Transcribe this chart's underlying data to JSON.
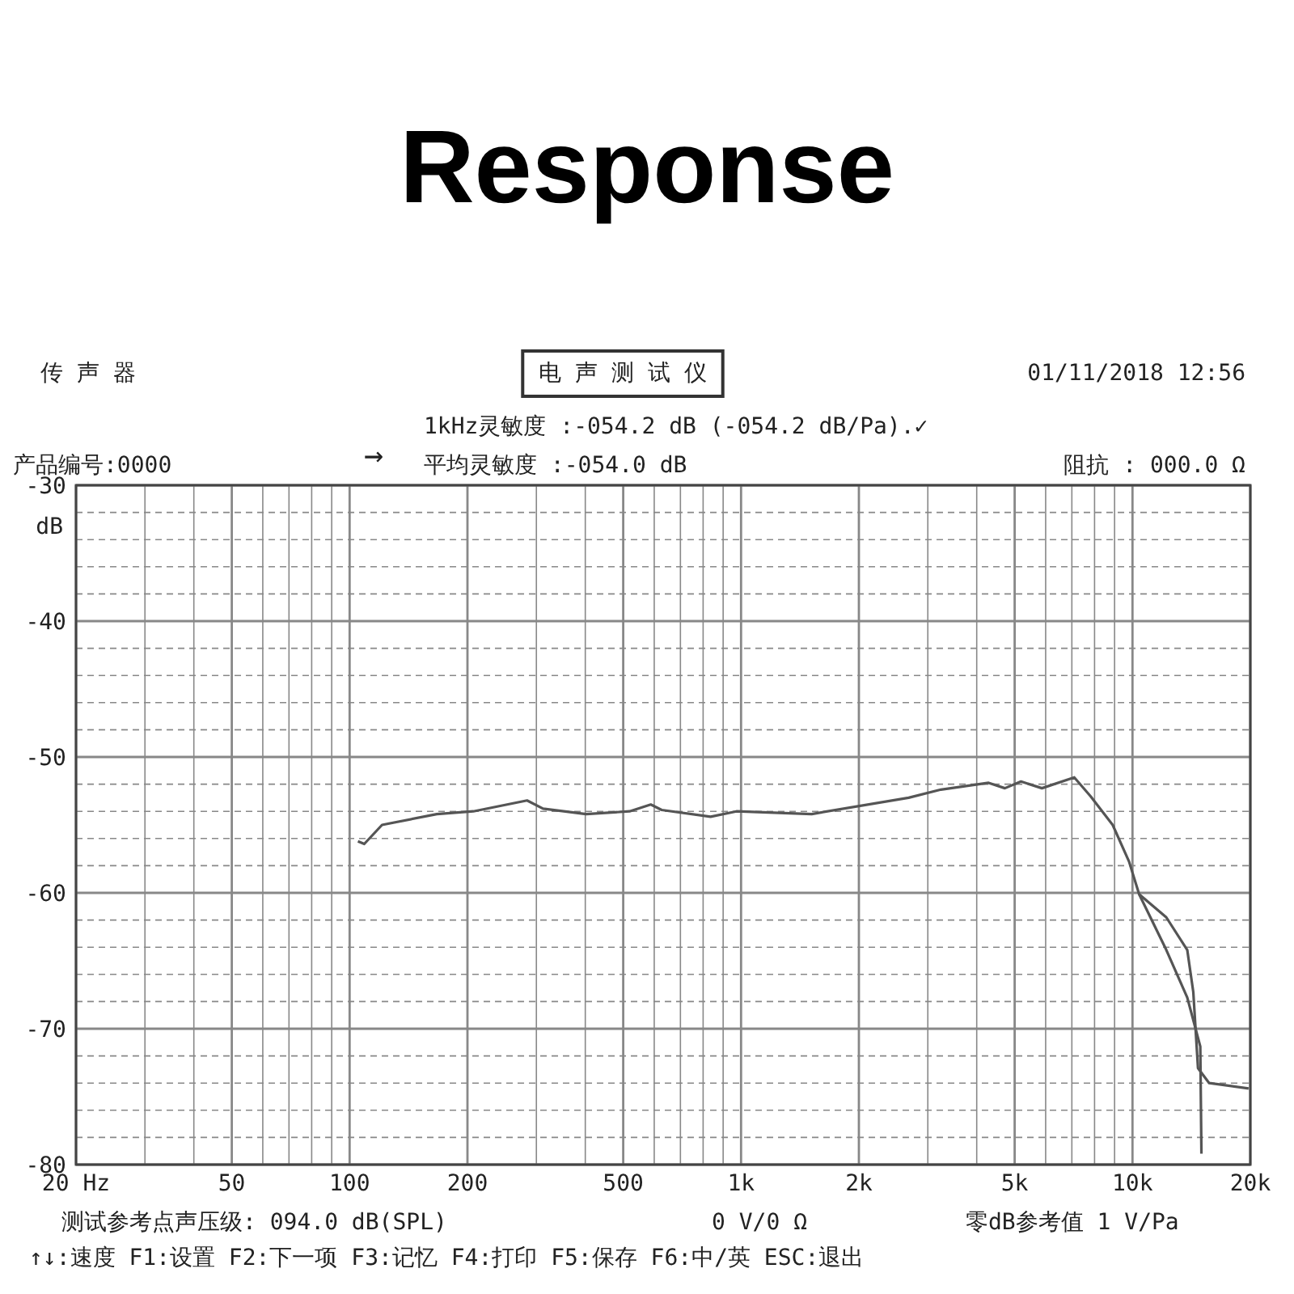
{
  "chart_data": {
    "type": "line",
    "title": "Response",
    "ylabel": "dB",
    "log": "x",
    "xlim": [
      20,
      20000
    ],
    "xticks": [
      {
        "value": 20,
        "label": "20 Hz"
      },
      50,
      100,
      200,
      500,
      {
        "value": 1000,
        "label": "1k"
      },
      {
        "value": 2000,
        "label": "2k"
      },
      {
        "value": 5000,
        "label": "5k"
      },
      {
        "value": 10000,
        "label": "10k"
      },
      {
        "value": 20000,
        "label": "20k"
      }
    ],
    "ylim": [
      -80,
      -30
    ],
    "yticks": [
      -30,
      -40,
      -50,
      -60,
      -70,
      -80
    ],
    "grid": true,
    "line_style": "solid",
    "marker": "none",
    "series": [
      {
        "color": "#555555",
        "x": [
          105,
          109,
          121,
          167,
          207,
          284,
          312,
          402,
          519,
          588,
          627,
          836,
          973,
          1515,
          2680,
          3240,
          4290,
          4720,
          5190,
          5870,
          7100,
          7820,
          8900,
          9800,
          10400,
          12200,
          13800,
          14300,
          14700,
          15700,
          19800
        ],
        "values": [
          -56.2,
          -56.4,
          -55.0,
          -54.2,
          -54.0,
          -53.2,
          -53.8,
          -54.2,
          -54.0,
          -53.5,
          -53.9,
          -54.4,
          -54.0,
          -54.2,
          -53.0,
          -52.4,
          -51.9,
          -52.3,
          -51.8,
          -52.3,
          -51.5,
          -52.9,
          -55.0,
          -57.7,
          -60.1,
          -61.8,
          -64.2,
          -67.3,
          -72.9,
          -74.0,
          -74.4
        ]
      },
      {
        "color": "#555555",
        "x": [
          10400,
          12200,
          13800,
          14900,
          15000
        ],
        "values": [
          -60.1,
          -64.2,
          -67.7,
          -71.3,
          -79.2
        ]
      }
    ],
    "annotations": [
      "传 声 器",
      "电 声 测 试 仪",
      "01/11/2018 12:56",
      "产品编号:0000",
      "→",
      "1kHz灵敏度 :-054.2 dB (-054.2 dB/Pa).✓",
      "平均灵敏度 :-054.0 dB",
      "阻抗 : 000.0 Ω",
      "测试参考点声压级: 094.0 dB(SPL)",
      "0 V/0 Ω",
      "零dB参考值 1 V/Pa",
      "↑↓:速度  F1:设置  F2:下一项  F3:记忆  F4:打印  F5:保存  F6:中/英  ESC:退出"
    ]
  }
}
